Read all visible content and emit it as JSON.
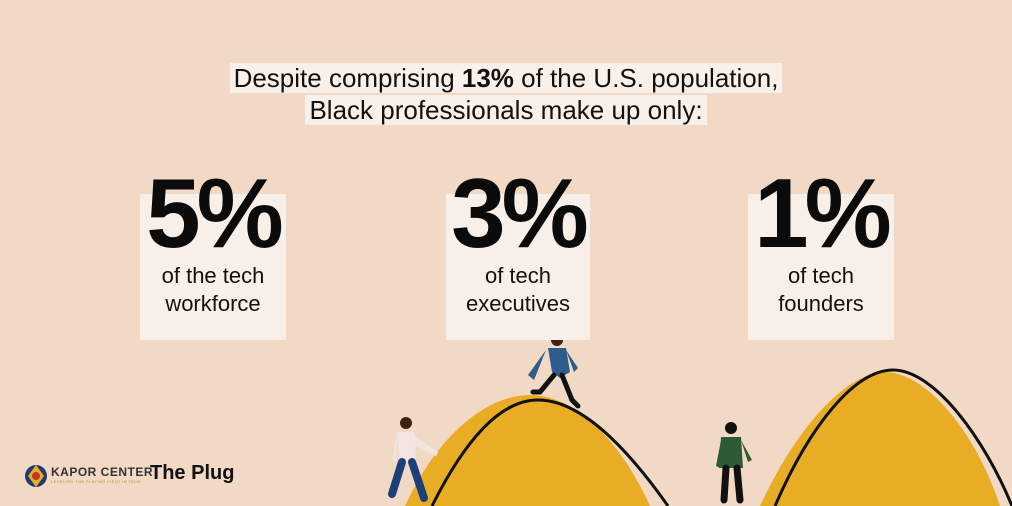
{
  "headline": {
    "prefix": "Despite comprising ",
    "emphasis": "13%",
    "suffix": " of the U.S. population,",
    "line2": "Black professionals make up only:"
  },
  "stats": [
    {
      "value": "5%",
      "line1": "of the tech",
      "line2": "workforce"
    },
    {
      "value": "3%",
      "line1": "of tech",
      "line2": "executives"
    },
    {
      "value": "1%",
      "line1": "of tech",
      "line2": "founders"
    }
  ],
  "footer": {
    "logo_name": "KAPOR CENTER",
    "logo_tagline": "LEVELING THE PLAYING FIELD IN TECH",
    "brand": "The Plug"
  },
  "colors": {
    "background": "#f2d9c5",
    "card": "#f9efe9",
    "hill": "#e8ad25",
    "text": "#111111"
  }
}
